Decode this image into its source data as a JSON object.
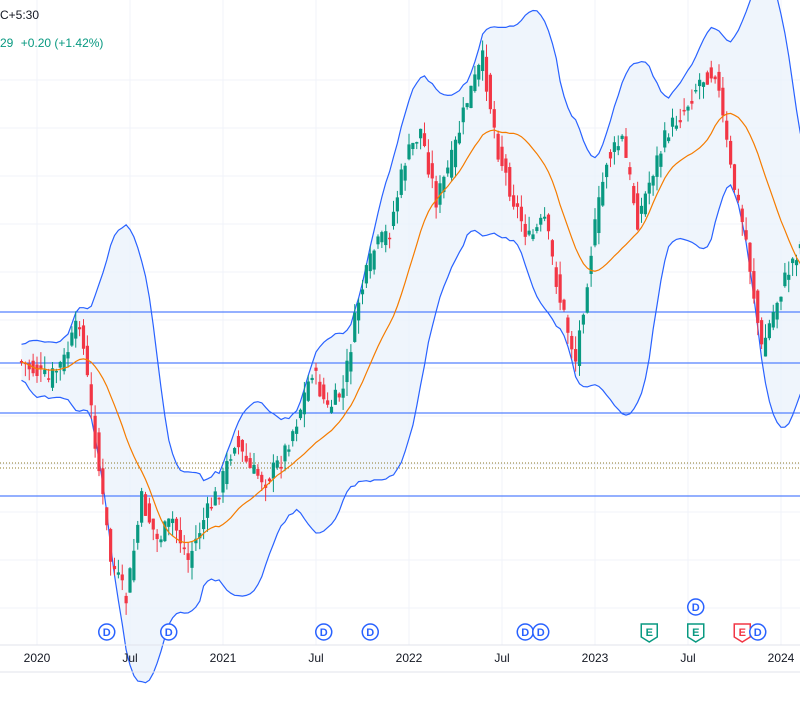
{
  "header": {
    "timezone_text": "C+5:30",
    "price_fragment": "29",
    "change_text": "+0.20 (+1.42%)"
  },
  "colors": {
    "up": "#089981",
    "down": "#f23645",
    "band_line": "#2962ff",
    "band_fill": "#e8f1fb",
    "ma": "#f57c00",
    "hline": "#2962ff",
    "grid": "#f0f3fa"
  },
  "chart_data": {
    "type": "candlestick",
    "title": "",
    "x_tick_labels": [
      {
        "label": "2020",
        "date": "2020-01"
      },
      {
        "label": "Jul",
        "date": "2020-07"
      },
      {
        "label": "2021",
        "date": "2021-01"
      },
      {
        "label": "Jul",
        "date": "2021-07"
      },
      {
        "label": "2022",
        "date": "2022-01"
      },
      {
        "label": "Jul",
        "date": "2022-07"
      },
      {
        "label": "2023",
        "date": "2023-01"
      },
      {
        "label": "Jul",
        "date": "2023-07"
      },
      {
        "label": "2024",
        "date": "2024-01"
      }
    ],
    "indicators": [
      "Bollinger Bands",
      "Moving Average"
    ],
    "horizontal_levels": 4,
    "events": [
      {
        "type": "D",
        "date": "2020-05"
      },
      {
        "type": "D",
        "date": "2020-09"
      },
      {
        "type": "D",
        "date": "2021-07"
      },
      {
        "type": "D",
        "date": "2021-10"
      },
      {
        "type": "D",
        "date": "2022-08"
      },
      {
        "type": "D",
        "date": "2022-09"
      },
      {
        "type": "E",
        "date": "2023-04"
      },
      {
        "type": "E",
        "date": "2023-07"
      },
      {
        "type": "D",
        "date": "2023-07"
      },
      {
        "type": "E",
        "date": "2023-10"
      },
      {
        "type": "D",
        "date": "2023-11"
      }
    ],
    "grid": true,
    "legend": "none"
  }
}
